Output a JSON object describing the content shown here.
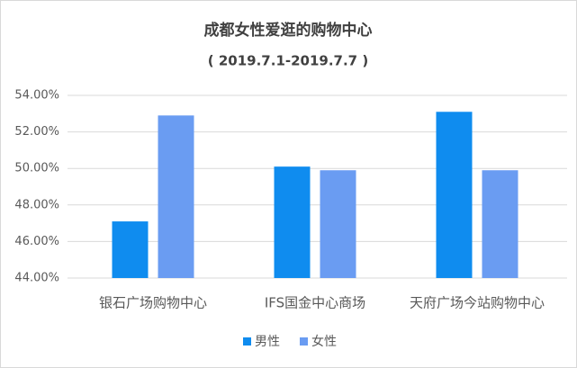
{
  "chart_data": {
    "type": "bar",
    "title": "成都女性爱逛的购物中心",
    "subtitle": "( 2019.7.1-2019.7.7 )",
    "categories": [
      "银石广场购物中心",
      "IFS国金中心商场",
      "天府广场今站购物中心"
    ],
    "series": [
      {
        "name": "男性",
        "color": "#0f8cef",
        "values": [
          47.1,
          50.1,
          53.1
        ]
      },
      {
        "name": "女性",
        "color": "#6a9cf2",
        "values": [
          52.9,
          49.9,
          49.9
        ]
      }
    ],
    "ylim": [
      44,
      54
    ],
    "yticks": [
      {
        "value": 44,
        "label": "44.00%"
      },
      {
        "value": 46,
        "label": "46.00%"
      },
      {
        "value": 48,
        "label": "48.00%"
      },
      {
        "value": 50,
        "label": "50.00%"
      },
      {
        "value": 52,
        "label": "52.00%"
      },
      {
        "value": 54,
        "label": "54.00%"
      }
    ],
    "grid": true,
    "legend": "bottom"
  }
}
